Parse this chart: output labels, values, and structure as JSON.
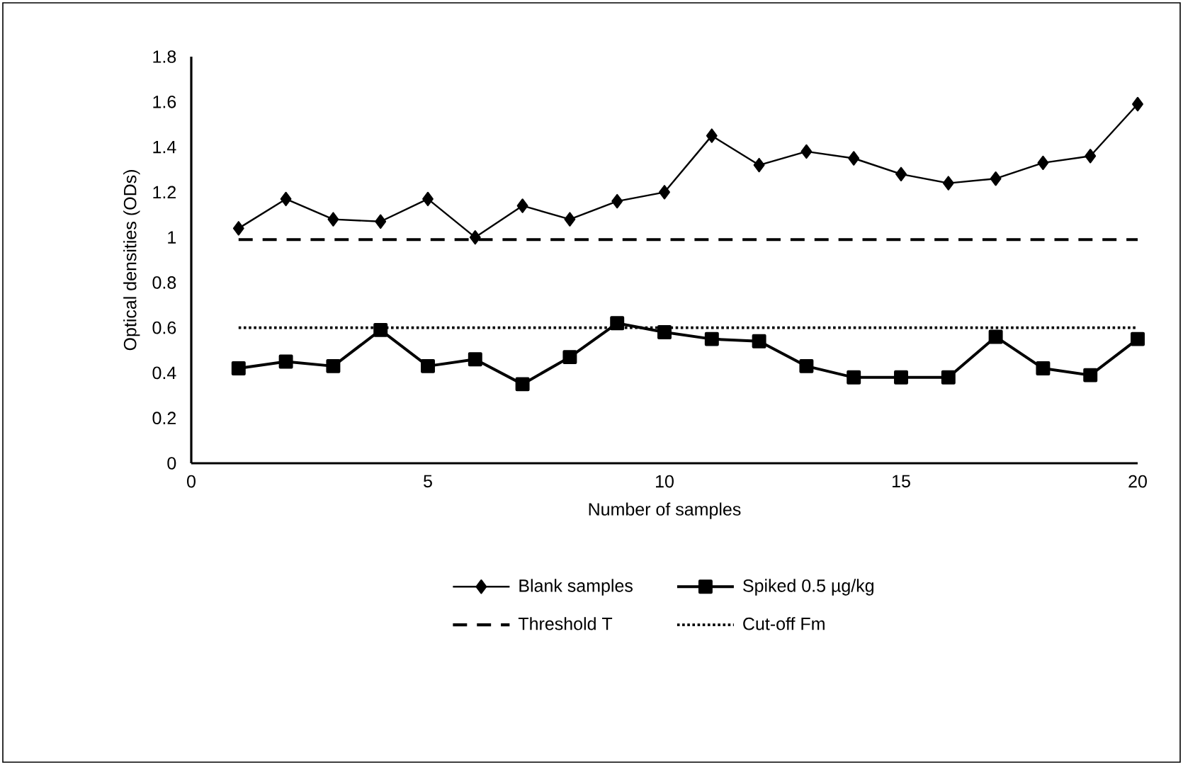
{
  "chart_data": {
    "type": "line",
    "xlabel": "Number of samples",
    "ylabel": "Optical densities (ODs)",
    "x": [
      1,
      2,
      3,
      4,
      5,
      6,
      7,
      8,
      9,
      10,
      11,
      12,
      13,
      14,
      15,
      16,
      17,
      18,
      19,
      20
    ],
    "xlim": [
      0,
      20
    ],
    "xticks": [
      0,
      5,
      10,
      15,
      20
    ],
    "ylim": [
      0,
      1.8
    ],
    "yticks": [
      0,
      0.2,
      0.4,
      0.6,
      0.8,
      1,
      1.2,
      1.4,
      1.6,
      1.8
    ],
    "grid": false,
    "legend": "bottom",
    "series": [
      {
        "name": "Blank samples",
        "color": "#000000",
        "marker": "diamond",
        "line_style": "solid",
        "values": [
          1.04,
          1.17,
          1.08,
          1.07,
          1.17,
          1.0,
          1.14,
          1.08,
          1.16,
          1.2,
          1.45,
          1.32,
          1.38,
          1.35,
          1.28,
          1.24,
          1.26,
          1.33,
          1.36,
          1.59
        ]
      },
      {
        "name": "Spiked  0.5 µg/kg",
        "color": "#000000",
        "marker": "square",
        "line_style": "solid",
        "values": [
          0.42,
          0.45,
          0.43,
          0.59,
          0.43,
          0.46,
          0.35,
          0.47,
          0.62,
          0.58,
          0.55,
          0.54,
          0.43,
          0.38,
          0.38,
          0.38,
          0.56,
          0.42,
          0.39,
          0.55
        ]
      },
      {
        "name": "Threshold T",
        "color": "#000000",
        "marker": "none",
        "line_style": "dashed",
        "values": [
          0.99,
          0.99,
          0.99,
          0.99,
          0.99,
          0.99,
          0.99,
          0.99,
          0.99,
          0.99,
          0.99,
          0.99,
          0.99,
          0.99,
          0.99,
          0.99,
          0.99,
          0.99,
          0.99,
          0.99
        ]
      },
      {
        "name": "Cut-off Fm",
        "color": "#000000",
        "marker": "none",
        "line_style": "dotted",
        "values": [
          0.6,
          0.6,
          0.6,
          0.6,
          0.6,
          0.6,
          0.6,
          0.6,
          0.6,
          0.6,
          0.6,
          0.6,
          0.6,
          0.6,
          0.6,
          0.6,
          0.6,
          0.6,
          0.6,
          0.6
        ]
      }
    ]
  }
}
